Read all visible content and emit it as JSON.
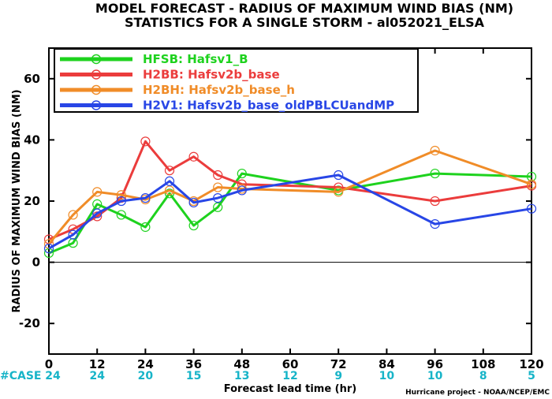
{
  "chart_data": {
    "type": "line",
    "title": [
      "MODEL FORECAST - RADIUS OF MAXIMUM WIND BIAS (NM)",
      "STATISTICS FOR A SINGLE STORM - al052021_ELSA"
    ],
    "xlabel": "Forecast lead time (hr)",
    "ylabel": "RADIUS OF MAXIMUM WIND BIAS (NM)",
    "xlim": [
      0,
      120
    ],
    "ylim": [
      -30,
      70
    ],
    "xticks": [
      0,
      12,
      24,
      36,
      48,
      60,
      72,
      84,
      96,
      108,
      120
    ],
    "yticks": [
      -20,
      0,
      20,
      40,
      60
    ],
    "zero_line": true,
    "legend_position": "top-left",
    "case_label": "#CASE",
    "case_x": [
      0,
      12,
      24,
      36,
      48,
      60,
      72,
      84,
      96,
      108,
      120
    ],
    "case_counts": [
      "24",
      "24",
      "20",
      "15",
      "13",
      "12",
      "9",
      "10",
      "10",
      "8",
      "5"
    ],
    "credit": "Hurricane project - NOAA/NCEP/EMC",
    "series": [
      {
        "name": "HFSB: Hafsv1_B",
        "color": "#1ed21e",
        "x": [
          0,
          6,
          12,
          18,
          24,
          30,
          36,
          42,
          48,
          72,
          96,
          120
        ],
        "y": [
          3,
          6.3,
          19,
          15.5,
          11.5,
          22.5,
          12,
          18,
          29,
          23.5,
          29,
          28
        ]
      },
      {
        "name": "H2BB: Hafsv2b_base",
        "color": "#eb3c3c",
        "x": [
          0,
          6,
          12,
          18,
          24,
          30,
          36,
          42,
          48,
          72,
          96,
          120
        ],
        "y": [
          7.5,
          10.8,
          15,
          21,
          39.5,
          30,
          34.5,
          28.5,
          25.5,
          24.5,
          20,
          25
        ]
      },
      {
        "name": "H2BH: Hafsv2b_base_h",
        "color": "#f08c28",
        "x": [
          0,
          6,
          12,
          18,
          24,
          30,
          36,
          42,
          48,
          72,
          96,
          120
        ],
        "y": [
          6,
          15.5,
          23,
          22,
          20.5,
          23.5,
          20,
          24.5,
          24,
          23,
          36.5,
          25.5
        ]
      },
      {
        "name": "H2V1: Hafsv2b_base_oldPBLCUandMP",
        "color": "#2846e6",
        "x": [
          0,
          6,
          12,
          18,
          24,
          30,
          36,
          42,
          48,
          72,
          96,
          120
        ],
        "y": [
          4.5,
          9,
          16,
          20,
          21,
          26.5,
          19.5,
          21,
          23.5,
          28.5,
          12.5,
          17.5
        ]
      }
    ]
  }
}
